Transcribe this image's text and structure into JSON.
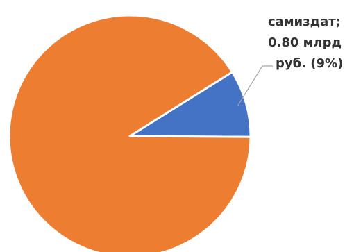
{
  "chart_data": {
    "type": "pie",
    "title": "",
    "start_angle_deg": -32,
    "direction": "clockwise",
    "slices": [
      {
        "label": "самиздат",
        "value": 0.8,
        "unit": "млрд руб.",
        "percent": 9,
        "color": "#4472C4",
        "label_lines": [
          "самиздат;",
          "0.80 млрд",
          "руб. (9%)"
        ]
      },
      {
        "label": "",
        "value": 8.09,
        "percent": 91,
        "color": "#ED7D31",
        "label_lines": []
      }
    ],
    "legend": "none"
  }
}
